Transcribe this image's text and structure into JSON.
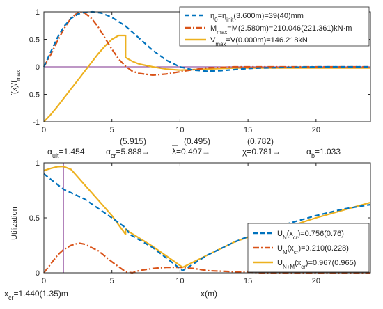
{
  "colors": {
    "blue": "#0072BD",
    "red": "#D95319",
    "yellow": "#EDB120",
    "purple": "#7E2F8E",
    "axis": "#262626",
    "text": "#262626"
  },
  "factors": {
    "alpha_ult": {
      "base": "α",
      "sub": "ult",
      "value": "=1.454"
    },
    "alpha_cr": {
      "base": "α",
      "sub": "cr",
      "value": "=5.888→",
      "paren": "(5.915)"
    },
    "lambda": {
      "base": "λ",
      "value": "=0.497→",
      "paren": "(0.495)"
    },
    "chi": {
      "base": "χ",
      "value": "=0.781→",
      "paren": "(0.782)"
    },
    "alpha_b": {
      "base": "α",
      "sub": "b",
      "value": "=1.033"
    }
  },
  "xcr_label": {
    "base": "x",
    "sub": "cr",
    "value": "=1.440(1.35)m"
  },
  "chart_data": [
    {
      "type": "line",
      "ylabel": "f(x)/f_max",
      "xlim": [
        0,
        24
      ],
      "ylim": [
        -1,
        1
      ],
      "xticks": [
        "0",
        "5",
        "10",
        "15",
        "20"
      ],
      "yticks": [
        "-1",
        "-0.5",
        "0",
        "0.5",
        "1"
      ],
      "legend_position": "top-right",
      "legend": [
        {
          "text": "η0=ηinit(3.600m)=39(40)mm",
          "series": "eta"
        },
        {
          "text": "Mmax=M(2.580m)=210.046(221.361)kN·m",
          "series": "M"
        },
        {
          "text": "Vmax=V(0.000m)=146.218kN",
          "series": "V"
        }
      ],
      "series": [
        {
          "name": "η0=ηinit(3.600m)=39(40)mm",
          "style": "dashed",
          "color_key": "blue",
          "x": [
            0,
            0.5,
            1,
            1.5,
            2,
            2.5,
            3,
            3.6,
            4.2,
            5,
            6,
            7,
            8,
            9,
            10,
            11,
            12,
            13,
            14,
            15,
            16,
            18,
            20,
            22,
            24
          ],
          "y": [
            0,
            0.27,
            0.53,
            0.74,
            0.88,
            0.96,
            0.99,
            1.0,
            0.98,
            0.9,
            0.74,
            0.52,
            0.3,
            0.12,
            0.0,
            -0.06,
            -0.08,
            -0.07,
            -0.05,
            -0.03,
            -0.02,
            -0.01,
            0.0,
            0.0,
            0.0
          ]
        },
        {
          "name": "Mmax=M(2.580m)=210.046(221.361)kN·m",
          "style": "dashdot",
          "color_key": "red",
          "x": [
            0,
            0.5,
            1,
            1.5,
            2,
            2.58,
            3,
            3.5,
            4,
            4.5,
            5,
            5.5,
            6,
            6.5,
            7,
            8,
            9,
            10,
            11,
            12,
            13,
            14,
            16,
            18,
            20,
            22,
            24
          ],
          "y": [
            0,
            0.22,
            0.47,
            0.7,
            0.89,
            1.0,
            0.98,
            0.88,
            0.72,
            0.52,
            0.32,
            0.14,
            0.01,
            -0.08,
            -0.12,
            -0.15,
            -0.13,
            -0.09,
            -0.05,
            -0.02,
            -0.01,
            0.0,
            0.0,
            0.0,
            0.0,
            0.0,
            0.0
          ]
        },
        {
          "name": "Vmax=V(0.000m)=146.218kN",
          "style": "solid",
          "color_key": "yellow",
          "x": [
            0,
            0.5,
            1,
            1.5,
            2,
            2.5,
            3,
            3.5,
            4,
            4.5,
            5,
            5.5,
            6.0,
            6.0,
            6.5,
            7,
            8,
            9,
            10,
            11,
            12,
            13,
            14,
            15,
            16,
            18,
            20,
            22,
            24
          ],
          "y": [
            -1.0,
            -0.87,
            -0.72,
            -0.56,
            -0.4,
            -0.24,
            -0.08,
            0.08,
            0.24,
            0.38,
            0.5,
            0.57,
            0.57,
            0.17,
            0.1,
            0.05,
            0.0,
            -0.04,
            -0.06,
            -0.05,
            -0.04,
            -0.03,
            -0.02,
            -0.02,
            -0.02,
            -0.02,
            -0.02,
            -0.02,
            -0.02
          ]
        },
        {
          "name": "",
          "style": "solid",
          "color_key": "purple",
          "x": [
            0,
            24
          ],
          "y": [
            0,
            0
          ]
        }
      ]
    },
    {
      "type": "line",
      "ylabel": "Utilization",
      "xlabel": "x(m)",
      "xlim": [
        0,
        24
      ],
      "ylim": [
        0,
        1
      ],
      "xticks": [
        "0",
        "5",
        "10",
        "15",
        "20"
      ],
      "yticks": [
        "0",
        "0.5",
        "1"
      ],
      "legend_position": "bottom-right",
      "legend": [
        {
          "text": "UN(xcr)=0.756(0.76)",
          "series": "N"
        },
        {
          "text": "UM(xcr)=0.210(0.228)",
          "series": "M"
        },
        {
          "text": "UN+M(xcr)=0.967(0.965)",
          "series": "NM"
        }
      ],
      "series": [
        {
          "name": "UN(xcr)=0.756(0.76)",
          "style": "dashed",
          "color_key": "blue",
          "x": [
            0,
            1.44,
            3,
            5,
            6,
            6.3,
            8,
            10.2,
            12,
            14,
            16,
            18,
            20,
            22,
            24
          ],
          "y": [
            0.9,
            0.76,
            0.67,
            0.5,
            0.41,
            0.35,
            0.23,
            0.02,
            0.16,
            0.28,
            0.38,
            0.45,
            0.52,
            0.58,
            0.62
          ]
        },
        {
          "name": "UM(xcr)=0.210(0.228)",
          "style": "dashdot",
          "color_key": "red",
          "x": [
            0,
            0.5,
            1,
            1.44,
            2,
            2.58,
            3,
            4,
            5,
            6,
            6.5,
            7,
            8,
            9,
            10,
            11,
            12,
            14,
            16,
            18,
            20,
            22,
            24
          ],
          "y": [
            0.0,
            0.08,
            0.16,
            0.21,
            0.25,
            0.27,
            0.26,
            0.2,
            0.1,
            0.01,
            0.0,
            0.02,
            0.04,
            0.05,
            0.05,
            0.04,
            0.02,
            0.01,
            0.0,
            0.0,
            0.0,
            0.0,
            0.0
          ]
        },
        {
          "name": "UN+M(xcr)=0.967(0.965)",
          "style": "solid",
          "color_key": "yellow",
          "x": [
            0,
            0.5,
            1,
            1.44,
            2,
            3,
            4,
            5,
            6.0,
            6.0,
            6.3,
            8,
            10.2,
            12,
            14,
            16,
            18,
            18,
            20,
            22,
            24
          ],
          "y": [
            0.93,
            0.95,
            0.965,
            0.967,
            0.94,
            0.8,
            0.66,
            0.52,
            0.35,
            0.4,
            0.37,
            0.24,
            0.05,
            0.16,
            0.28,
            0.37,
            0.45,
            0.42,
            0.5,
            0.57,
            0.64
          ]
        },
        {
          "name": "",
          "style": "solid",
          "color_key": "purple",
          "x": [
            1.44,
            1.44
          ],
          "y": [
            0,
            1
          ]
        }
      ]
    }
  ]
}
